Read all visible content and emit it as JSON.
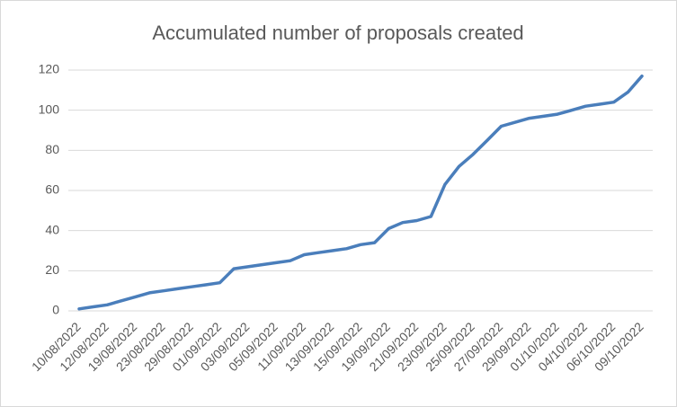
{
  "chart_data": {
    "type": "line",
    "title": "Accumulated number of proposals created",
    "categories": [
      "10/08/2022",
      null,
      "12/08/2022",
      null,
      "19/08/2022",
      null,
      "23/08/2022",
      null,
      "29/08/2022",
      null,
      "01/09/2022",
      null,
      "03/09/2022",
      null,
      "05/09/2022",
      null,
      "11/09/2022",
      null,
      "13/09/2022",
      null,
      "15/09/2022",
      null,
      "19/09/2022",
      null,
      "21/09/2022",
      null,
      "23/09/2022",
      null,
      "25/09/2022",
      null,
      "27/09/2022",
      null,
      "29/09/2022",
      null,
      "01/10/2022",
      null,
      "04/10/2022",
      null,
      "06/10/2022",
      null,
      "09/10/2022"
    ],
    "values": [
      1,
      2,
      3,
      5,
      7,
      9,
      10,
      11,
      12,
      13,
      14,
      21,
      22,
      23,
      24,
      25,
      28,
      29,
      30,
      31,
      33,
      34,
      41,
      44,
      45,
      47,
      63,
      72,
      78,
      85,
      92,
      94,
      96,
      97,
      98,
      100,
      102,
      103,
      104,
      109,
      117
    ],
    "color": "#4a7ebb",
    "ylim": [
      0,
      120
    ],
    "yticks": [
      0,
      20,
      40,
      60,
      80,
      100,
      120
    ],
    "grid": true
  }
}
